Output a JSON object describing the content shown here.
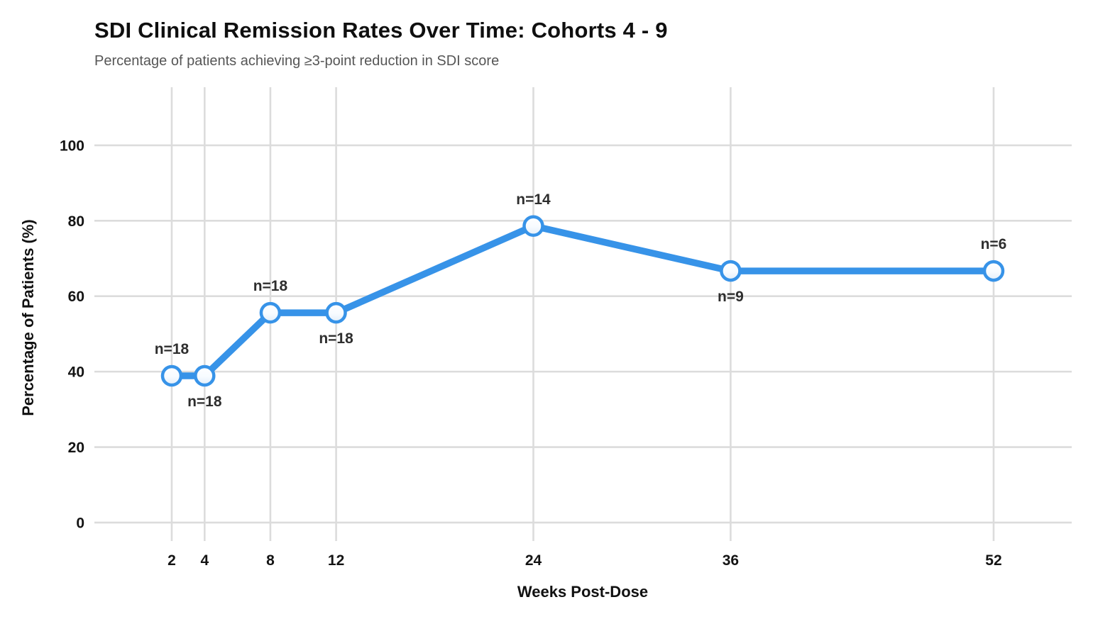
{
  "chart_data": {
    "type": "line",
    "title": "SDI Clinical Remission Rates Over Time: Cohorts 4 - 9",
    "subtitle": "Percentage of patients achieving ≥3-point reduction in SDI score",
    "xlabel": "Weeks Post-Dose",
    "ylabel": "Percentage of Patients (%)",
    "x": [
      2,
      4,
      8,
      12,
      24,
      36,
      52
    ],
    "y": [
      38.9,
      38.9,
      55.6,
      55.6,
      78.6,
      66.7,
      66.7
    ],
    "point_labels": [
      "n=18",
      "n=18",
      "n=18",
      "n=18",
      "n=14",
      "n=9",
      "n=6"
    ],
    "point_label_positions": [
      "above",
      "below",
      "above",
      "below",
      "above",
      "below",
      "above"
    ],
    "x_ticks": [
      2,
      4,
      8,
      12,
      24,
      36,
      52
    ],
    "y_ticks": [
      0,
      20,
      40,
      60,
      80,
      100
    ],
    "xlim": [
      -2.705,
      56.75
    ],
    "ylim": [
      -4.9,
      115.4
    ],
    "grid": true,
    "legend": "none",
    "colors": {
      "line": "#3793e8",
      "marker_stroke": "#3793e8",
      "marker_fill_top": "#ffffff",
      "marker_fill_mid": "#f7fbff",
      "marker_fill_bottom": "#e2eef9",
      "grid": "#dcdcdc",
      "title": "#0f0f0f",
      "subtitle": "#565656",
      "tick_label": "#141414",
      "point_label": "#2e2e2e",
      "background": "#ffffff"
    }
  }
}
